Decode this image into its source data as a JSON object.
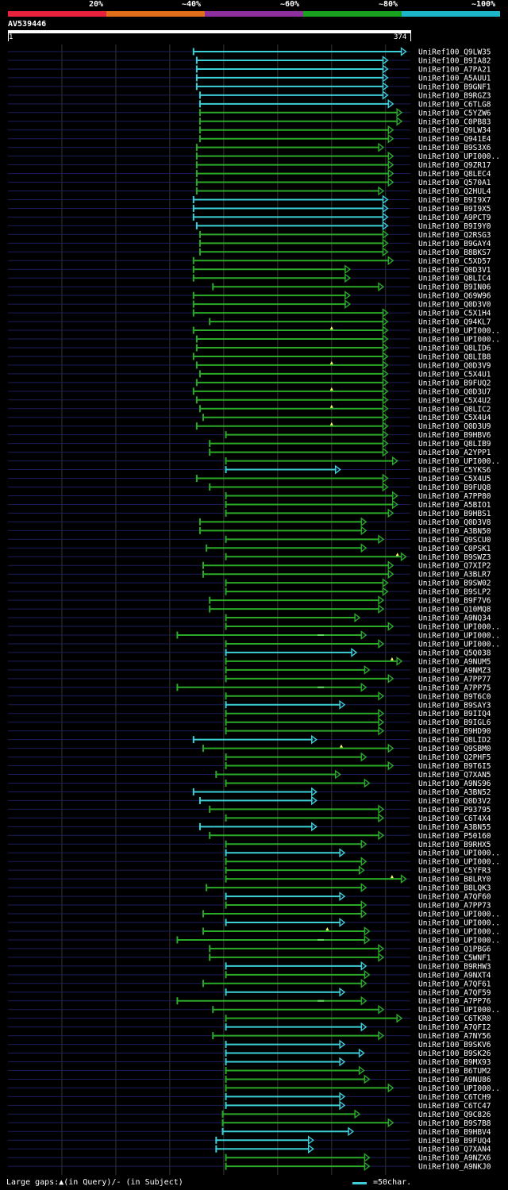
{
  "colors": {
    "background": "#000000",
    "band_20": "#e8223c",
    "band_40": "#e06e1a",
    "band_60": "#8e2f9e",
    "band_80": "#19a01e",
    "band_100": "#1cb6c8",
    "green_hit": "#2aaa28",
    "cyan_hit": "#3ccfd8",
    "track": "#1c1c5a",
    "grid": "#333333"
  },
  "legend": {
    "labels": [
      "20%",
      "~40%",
      "~60%",
      "~80%",
      "~100%"
    ]
  },
  "query": {
    "name": "AV539446",
    "start": "1",
    "end": "374"
  },
  "footer": {
    "gaps_text": "Large gaps:▲(in Query)/- (in Subject)",
    "scale_text": "=50char."
  },
  "chart_data": {
    "type": "alignment-hits",
    "query_length": 374,
    "hits": [
      {
        "name": "UniRef100_Q9LW35",
        "start": 173,
        "end": 370,
        "color": "cyan"
      },
      {
        "name": "UniRef100_B9IA82",
        "start": 176,
        "end": 353,
        "color": "cyan"
      },
      {
        "name": "UniRef100_A7PA21",
        "start": 176,
        "end": 353,
        "color": "cyan"
      },
      {
        "name": "UniRef100_A5AUU1",
        "start": 176,
        "end": 353,
        "color": "cyan"
      },
      {
        "name": "UniRef100_B9GNF1",
        "start": 176,
        "end": 353,
        "color": "cyan"
      },
      {
        "name": "UniRef100_B9RGZ3",
        "start": 179,
        "end": 353,
        "color": "cyan"
      },
      {
        "name": "UniRef100_C6TLG8",
        "start": 179,
        "end": 358,
        "color": "cyan"
      },
      {
        "name": "UniRef100_C5YZW6",
        "start": 179,
        "end": 366,
        "color": "green"
      },
      {
        "name": "UniRef100_C0PB83",
        "start": 179,
        "end": 366,
        "color": "green"
      },
      {
        "name": "UniRef100_Q9LW34",
        "start": 179,
        "end": 358,
        "color": "green"
      },
      {
        "name": "UniRef100_Q941E4",
        "start": 179,
        "end": 358,
        "color": "green"
      },
      {
        "name": "UniRef100_B9S3X6",
        "start": 176,
        "end": 349,
        "color": "green"
      },
      {
        "name": "UniRef100_UPI000..",
        "start": 176,
        "end": 358,
        "color": "green"
      },
      {
        "name": "UniRef100_Q9ZR17",
        "start": 176,
        "end": 358,
        "color": "green"
      },
      {
        "name": "UniRef100_Q8LEC4",
        "start": 176,
        "end": 358,
        "color": "green"
      },
      {
        "name": "UniRef100_Q570A1",
        "start": 176,
        "end": 358,
        "color": "green"
      },
      {
        "name": "UniRef100_Q2HUL4",
        "start": 176,
        "end": 349,
        "color": "green"
      },
      {
        "name": "UniRef100_B9I9X7",
        "start": 173,
        "end": 353,
        "color": "cyan"
      },
      {
        "name": "UniRef100_B9I9X5",
        "start": 173,
        "end": 353,
        "color": "cyan"
      },
      {
        "name": "UniRef100_A9PCT9",
        "start": 173,
        "end": 353,
        "color": "cyan"
      },
      {
        "name": "UniRef100_B9I9Y0",
        "start": 176,
        "end": 353,
        "color": "cyan"
      },
      {
        "name": "UniRef100_Q2RSG3",
        "start": 179,
        "end": 353,
        "color": "green"
      },
      {
        "name": "UniRef100_B9GAY4",
        "start": 179,
        "end": 353,
        "color": "green"
      },
      {
        "name": "UniRef100_B8BKS7",
        "start": 179,
        "end": 353,
        "color": "green"
      },
      {
        "name": "UniRef100_C5XD57",
        "start": 173,
        "end": 358,
        "color": "green"
      },
      {
        "name": "UniRef100_Q0D3V1",
        "start": 173,
        "end": 318,
        "color": "green"
      },
      {
        "name": "UniRef100_Q8LIC4",
        "start": 173,
        "end": 318,
        "color": "green"
      },
      {
        "name": "UniRef100_B9IN06",
        "start": 191,
        "end": 349,
        "color": "green"
      },
      {
        "name": "UniRef100_Q69W96",
        "start": 173,
        "end": 318,
        "color": "green"
      },
      {
        "name": "UniRef100_Q0D3V0",
        "start": 173,
        "end": 318,
        "color": "green"
      },
      {
        "name": "UniRef100_C5X1H4",
        "start": 173,
        "end": 353,
        "color": "green"
      },
      {
        "name": "UniRef100_Q94KL7",
        "start": 188,
        "end": 353,
        "color": "green"
      },
      {
        "name": "UniRef100_UPI000..",
        "start": 173,
        "end": 353,
        "color": "green",
        "gap": 301
      },
      {
        "name": "UniRef100_UPI000..",
        "start": 176,
        "end": 353,
        "color": "green"
      },
      {
        "name": "UniRef100_Q8LID6",
        "start": 176,
        "end": 353,
        "color": "green"
      },
      {
        "name": "UniRef100_Q8LIB8",
        "start": 173,
        "end": 353,
        "color": "green"
      },
      {
        "name": "UniRef100_Q0D3V9",
        "start": 176,
        "end": 353,
        "color": "green",
        "gap": 301
      },
      {
        "name": "UniRef100_C5X4U1",
        "start": 179,
        "end": 353,
        "color": "green"
      },
      {
        "name": "UniRef100_B9FUQ2",
        "start": 176,
        "end": 353,
        "color": "green"
      },
      {
        "name": "UniRef100_Q0D3U7",
        "start": 173,
        "end": 353,
        "color": "green",
        "gap": 301
      },
      {
        "name": "UniRef100_C5X4U2",
        "start": 176,
        "end": 353,
        "color": "green"
      },
      {
        "name": "UniRef100_Q8LIC2",
        "start": 179,
        "end": 353,
        "color": "green",
        "gap": 301
      },
      {
        "name": "UniRef100_C5X4U4",
        "start": 182,
        "end": 353,
        "color": "green"
      },
      {
        "name": "UniRef100_Q0D3U9",
        "start": 176,
        "end": 353,
        "color": "green",
        "gap": 301
      },
      {
        "name": "UniRef100_B9HBV6",
        "start": 203,
        "end": 353,
        "color": "green"
      },
      {
        "name": "UniRef100_Q8LIB9",
        "start": 188,
        "end": 353,
        "color": "green"
      },
      {
        "name": "UniRef100_A2YPP1",
        "start": 188,
        "end": 353,
        "color": "green"
      },
      {
        "name": "UniRef100_UPI000..",
        "start": 203,
        "end": 362,
        "color": "green"
      },
      {
        "name": "UniRef100_C5YKS6",
        "start": 203,
        "end": 309,
        "color": "cyan"
      },
      {
        "name": "UniRef100_C5X4U5",
        "start": 176,
        "end": 353,
        "color": "green"
      },
      {
        "name": "UniRef100_B9FUQ8",
        "start": 188,
        "end": 353,
        "color": "green"
      },
      {
        "name": "UniRef100_A7PP80",
        "start": 203,
        "end": 362,
        "color": "green"
      },
      {
        "name": "UniRef100_A5BIO1",
        "start": 203,
        "end": 362,
        "color": "green"
      },
      {
        "name": "UniRef100_B9HBS1",
        "start": 203,
        "end": 358,
        "color": "green"
      },
      {
        "name": "UniRef100_Q0D3V8",
        "start": 179,
        "end": 333,
        "color": "green"
      },
      {
        "name": "UniRef100_A3BN50",
        "start": 179,
        "end": 333,
        "color": "green"
      },
      {
        "name": "UniRef100_Q9SCU0",
        "start": 203,
        "end": 349,
        "color": "green"
      },
      {
        "name": "UniRef100_C0PSK1",
        "start": 185,
        "end": 333,
        "color": "green"
      },
      {
        "name": "UniRef100_B9SWZ3",
        "start": 203,
        "end": 370,
        "color": "green",
        "gap": 362
      },
      {
        "name": "UniRef100_Q7XIP2",
        "start": 182,
        "end": 358,
        "color": "green"
      },
      {
        "name": "UniRef100_A3BLR7",
        "start": 182,
        "end": 358,
        "color": "green"
      },
      {
        "name": "UniRef100_B9SW02",
        "start": 203,
        "end": 353,
        "color": "green"
      },
      {
        "name": "UniRef100_B9SLP2",
        "start": 203,
        "end": 353,
        "color": "green"
      },
      {
        "name": "UniRef100_B9F7V6",
        "start": 188,
        "end": 349,
        "color": "green"
      },
      {
        "name": "UniRef100_Q10MQ8",
        "start": 188,
        "end": 349,
        "color": "green"
      },
      {
        "name": "UniRef100_A9NQ34",
        "start": 203,
        "end": 327,
        "color": "green"
      },
      {
        "name": "UniRef100_UPI000..",
        "start": 203,
        "end": 358,
        "color": "green"
      },
      {
        "name": "UniRef100_UPI000..",
        "start": 158,
        "end": 333,
        "color": "green",
        "sgap": 291
      },
      {
        "name": "UniRef100_UPI000..",
        "start": 203,
        "end": 349,
        "color": "green"
      },
      {
        "name": "UniRef100_Q5Q038",
        "start": 203,
        "end": 324,
        "color": "cyan"
      },
      {
        "name": "UniRef100_A9NUM5",
        "start": 203,
        "end": 366,
        "color": "green",
        "gap": 357
      },
      {
        "name": "UniRef100_A9NMZ3",
        "start": 203,
        "end": 336,
        "color": "green"
      },
      {
        "name": "UniRef100_A7PP77",
        "start": 203,
        "end": 358,
        "color": "green"
      },
      {
        "name": "UniRef100_A7PP75",
        "start": 158,
        "end": 333,
        "color": "green",
        "sgap": 291
      },
      {
        "name": "UniRef100_B9T6C0",
        "start": 203,
        "end": 349,
        "color": "green"
      },
      {
        "name": "UniRef100_B9SAY3",
        "start": 203,
        "end": 313,
        "color": "cyan"
      },
      {
        "name": "UniRef100_B9IIQ4",
        "start": 203,
        "end": 349,
        "color": "green"
      },
      {
        "name": "UniRef100_B9IGL6",
        "start": 203,
        "end": 349,
        "color": "green"
      },
      {
        "name": "UniRef100_B9HD90",
        "start": 203,
        "end": 349,
        "color": "green"
      },
      {
        "name": "UniRef100_Q8LID2",
        "start": 173,
        "end": 287,
        "color": "cyan"
      },
      {
        "name": "UniRef100_Q9SBM0",
        "start": 182,
        "end": 358,
        "color": "green",
        "gap": 310
      },
      {
        "name": "UniRef100_Q2PHF5",
        "start": 203,
        "end": 333,
        "color": "green"
      },
      {
        "name": "UniRef100_B9T6I5",
        "start": 203,
        "end": 358,
        "color": "green"
      },
      {
        "name": "UniRef100_Q7XAN5",
        "start": 194,
        "end": 309,
        "color": "green"
      },
      {
        "name": "UniRef100_A9NS96",
        "start": 203,
        "end": 336,
        "color": "green"
      },
      {
        "name": "UniRef100_A3BN52",
        "start": 173,
        "end": 287,
        "color": "cyan"
      },
      {
        "name": "UniRef100_Q0D3V2",
        "start": 179,
        "end": 287,
        "color": "cyan"
      },
      {
        "name": "UniRef100_P93795",
        "start": 188,
        "end": 349,
        "color": "green"
      },
      {
        "name": "UniRef100_C6T4X4",
        "start": 203,
        "end": 349,
        "color": "green"
      },
      {
        "name": "UniRef100_A3BN55",
        "start": 179,
        "end": 287,
        "color": "cyan"
      },
      {
        "name": "UniRef100_P50160",
        "start": 188,
        "end": 349,
        "color": "green"
      },
      {
        "name": "UniRef100_B9RHX5",
        "start": 203,
        "end": 333,
        "color": "green"
      },
      {
        "name": "UniRef100_UPI000..",
        "start": 203,
        "end": 313,
        "color": "cyan"
      },
      {
        "name": "UniRef100_UPI000..",
        "start": 203,
        "end": 333,
        "color": "green"
      },
      {
        "name": "UniRef100_C5YFR3",
        "start": 203,
        "end": 331,
        "color": "green"
      },
      {
        "name": "UniRef100_B8LRY0",
        "start": 203,
        "end": 370,
        "color": "green",
        "gap": 357
      },
      {
        "name": "UniRef100_B8LQK3",
        "start": 185,
        "end": 333,
        "color": "green"
      },
      {
        "name": "UniRef100_A7QF60",
        "start": 203,
        "end": 313,
        "color": "cyan"
      },
      {
        "name": "UniRef100_A7PP73",
        "start": 203,
        "end": 333,
        "color": "green"
      },
      {
        "name": "UniRef100_UPI000..",
        "start": 182,
        "end": 333,
        "color": "green"
      },
      {
        "name": "UniRef100_UPI000..",
        "start": 203,
        "end": 313,
        "color": "cyan"
      },
      {
        "name": "UniRef100_UPI000..",
        "start": 182,
        "end": 336,
        "color": "green",
        "gap": 297
      },
      {
        "name": "UniRef100_UPI000..",
        "start": 158,
        "end": 336,
        "color": "green",
        "sgap": 291
      },
      {
        "name": "UniRef100_Q1PBG6",
        "start": 188,
        "end": 349,
        "color": "green"
      },
      {
        "name": "UniRef100_C5WNF1",
        "start": 188,
        "end": 349,
        "color": "green"
      },
      {
        "name": "UniRef100_B9RHW3",
        "start": 203,
        "end": 333,
        "color": "cyan"
      },
      {
        "name": "UniRef100_A9NXT4",
        "start": 203,
        "end": 336,
        "color": "green"
      },
      {
        "name": "UniRef100_A7QF61",
        "start": 182,
        "end": 333,
        "color": "green"
      },
      {
        "name": "UniRef100_A7QF59",
        "start": 203,
        "end": 313,
        "color": "cyan"
      },
      {
        "name": "UniRef100_A7PP76",
        "start": 158,
        "end": 333,
        "color": "green",
        "sgap": 291
      },
      {
        "name": "UniRef100_UPI000..",
        "start": 191,
        "end": 349,
        "color": "green"
      },
      {
        "name": "UniRef100_C6TKR0",
        "start": 203,
        "end": 366,
        "color": "green"
      },
      {
        "name": "UniRef100_A7QFI2",
        "start": 203,
        "end": 333,
        "color": "cyan"
      },
      {
        "name": "UniRef100_A7NY56",
        "start": 191,
        "end": 349,
        "color": "green"
      },
      {
        "name": "UniRef100_B9SKV6",
        "start": 203,
        "end": 313,
        "color": "cyan"
      },
      {
        "name": "UniRef100_B9SK26",
        "start": 203,
        "end": 331,
        "color": "cyan"
      },
      {
        "name": "UniRef100_B9MX93",
        "start": 203,
        "end": 313,
        "color": "cyan"
      },
      {
        "name": "UniRef100_B6TUM2",
        "start": 203,
        "end": 331,
        "color": "green"
      },
      {
        "name": "UniRef100_A9NU86",
        "start": 203,
        "end": 336,
        "color": "green"
      },
      {
        "name": "UniRef100_UPI000..",
        "start": 203,
        "end": 358,
        "color": "green"
      },
      {
        "name": "UniRef100_C6TCH9",
        "start": 203,
        "end": 313,
        "color": "cyan"
      },
      {
        "name": "UniRef100_C6TC47",
        "start": 203,
        "end": 313,
        "color": "cyan"
      },
      {
        "name": "UniRef100_Q9C826",
        "start": 200,
        "end": 327,
        "color": "green"
      },
      {
        "name": "UniRef100_B9S7B8",
        "start": 200,
        "end": 358,
        "color": "green"
      },
      {
        "name": "UniRef100_B9HBV4",
        "start": 200,
        "end": 321,
        "color": "cyan"
      },
      {
        "name": "UniRef100_B9FUQ4",
        "start": 194,
        "end": 284,
        "color": "cyan"
      },
      {
        "name": "UniRef100_Q7XAN4",
        "start": 194,
        "end": 284,
        "color": "cyan"
      },
      {
        "name": "UniRef100_A9NZX6",
        "start": 203,
        "end": 336,
        "color": "green"
      },
      {
        "name": "UniRef100_A9NKJ0",
        "start": 203,
        "end": 336,
        "color": "green"
      }
    ]
  }
}
